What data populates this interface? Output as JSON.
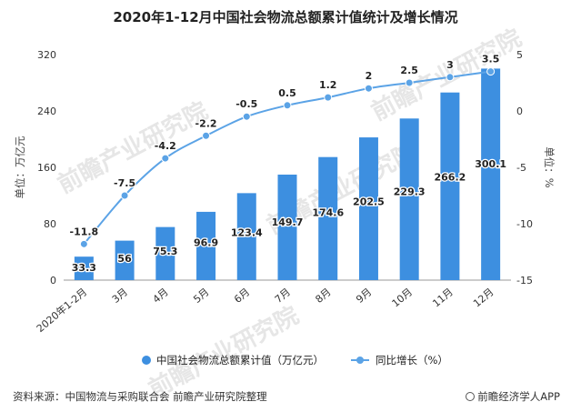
{
  "chart_data": {
    "type": "bar",
    "title": "2020年1-12月中国社会物流总额累计值统计及增长情况",
    "categories": [
      "2020年1-2月",
      "3月",
      "4月",
      "5月",
      "6月",
      "7月",
      "8月",
      "9月",
      "10月",
      "11月",
      "12月"
    ],
    "series": [
      {
        "name": "中国社会物流总额累计值（万亿元）",
        "type": "bar",
        "axis": "left",
        "values": [
          33.3,
          56,
          75.3,
          96.9,
          123.4,
          149.7,
          174.6,
          202.5,
          229.3,
          266.2,
          300.1
        ],
        "labels": [
          "33.3",
          "56",
          "75.3",
          "96.9",
          "123.4",
          "149.7",
          "174.6",
          "202.5",
          "229.3",
          "266.2",
          "300.1"
        ],
        "color": "#3d8fe0"
      },
      {
        "name": "同比增长（%）",
        "type": "line",
        "axis": "right",
        "values": [
          -11.8,
          -7.5,
          -4.2,
          -2.2,
          -0.5,
          0.5,
          1.2,
          2,
          2.5,
          3,
          3.5
        ],
        "labels": [
          "-11.8",
          "-7.5",
          "-4.2",
          "-2.2",
          "-0.5",
          "0.5",
          "1.2",
          "2",
          "2.5",
          "3",
          "3.5"
        ],
        "color": "#5ba3e6"
      }
    ],
    "ylabel": "单位：万亿元",
    "ylim": [
      0,
      320
    ],
    "yticks": [
      0,
      80,
      160,
      240,
      320
    ],
    "y2label": "单位：%",
    "y2lim": [
      -15,
      5
    ],
    "y2ticks": [
      -15,
      -10,
      -5,
      0,
      5
    ],
    "grid": false,
    "legend": "bottom"
  },
  "watermark": "前瞻产业研究院",
  "footer": {
    "source": "资料来源：中国物流与采购联合会 前瞻产业研究院整理",
    "brand": "前瞻经济学人APP"
  }
}
